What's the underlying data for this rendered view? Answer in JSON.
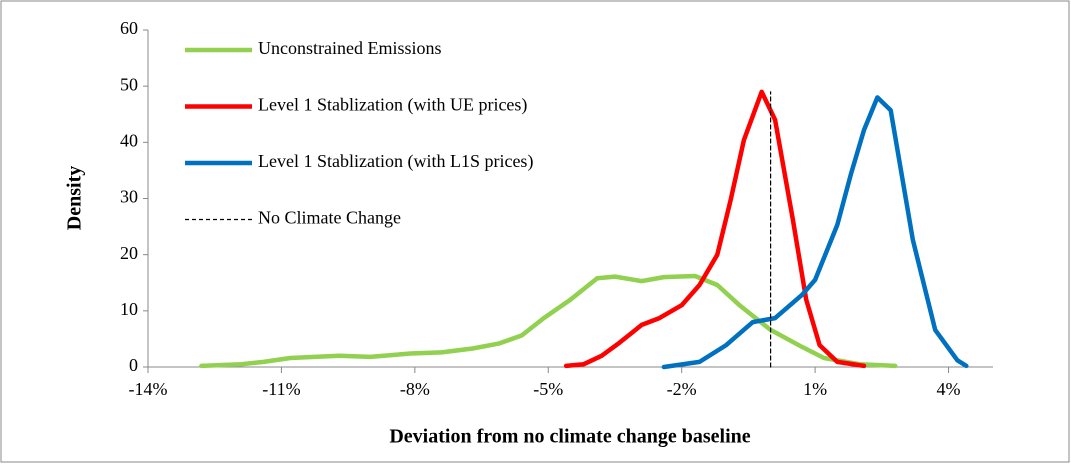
{
  "chart_data": {
    "type": "line",
    "x_label": "Deviation from no climate change baseline",
    "y_label": "Density",
    "xlim": [
      -14,
      5
    ],
    "xticks": [
      {
        "value": -14,
        "label": "-14%"
      },
      {
        "value": -11,
        "label": "-11%"
      },
      {
        "value": -8,
        "label": "-8%"
      },
      {
        "value": -5,
        "label": "-5%"
      },
      {
        "value": -2,
        "label": "-2%"
      },
      {
        "value": 1,
        "label": "1%"
      },
      {
        "value": 4,
        "label": "4%"
      }
    ],
    "ylim": [
      0,
      60
    ],
    "yticks": [
      0,
      10,
      20,
      30,
      40,
      50,
      60
    ],
    "grid": false,
    "legend": "top-left",
    "series": [
      {
        "name": "Unconstrained Emissions",
        "color": "#92d050",
        "linestyle": "solid",
        "x": [
          -12.8,
          -11.9,
          -11.4,
          -10.8,
          -9.7,
          -9.0,
          -8.1,
          -7.4,
          -6.7,
          -6.1,
          -5.6,
          -5.1,
          -4.5,
          -3.9,
          -3.5,
          -2.9,
          -2.4,
          -1.7,
          -1.2,
          -0.7,
          0,
          0.7,
          1.2,
          2.0,
          2.8
        ],
        "values": [
          0.2,
          0.5,
          0.9,
          1.6,
          2.0,
          1.8,
          2.4,
          2.6,
          3.3,
          4.2,
          5.6,
          8.7,
          12,
          15.8,
          16.1,
          15.3,
          16.0,
          16.2,
          14.6,
          11,
          6.6,
          3.6,
          1.6,
          0.5,
          0.2
        ]
      },
      {
        "name": "Level 1 Stablization (with UE prices)",
        "color": "#ff0000",
        "linestyle": "solid",
        "x": [
          -4.6,
          -4.2,
          -3.8,
          -3.4,
          -2.9,
          -2.5,
          -2.0,
          -1.6,
          -1.2,
          -0.9,
          -0.6,
          -0.2,
          0.1,
          0.5,
          0.8,
          1.1,
          1.5,
          2.1
        ],
        "values": [
          0.2,
          0.5,
          2,
          4.3,
          7.5,
          8.7,
          11,
          14.6,
          20,
          29.7,
          40.4,
          49,
          44,
          26.2,
          12,
          3.9,
          0.9,
          0.2
        ]
      },
      {
        "name": "Level 1 Stablization (with L1S prices)",
        "color": "#0070c0",
        "linestyle": "solid",
        "x": [
          -2.4,
          -1.6,
          -1.0,
          -0.4,
          0.1,
          0.7,
          1.0,
          1.5,
          1.8,
          2.1,
          2.4,
          2.7,
          3.2,
          3.7,
          4.2,
          4.4
        ],
        "values": [
          0,
          0.9,
          3.9,
          8,
          8.7,
          12.8,
          15.5,
          25.3,
          34.2,
          42.2,
          48,
          45.7,
          22.6,
          6.6,
          1.2,
          0.2
        ]
      },
      {
        "name": "No Climate Change",
        "color": "#000000",
        "linestyle": "dashed",
        "x": [
          0,
          0
        ],
        "values": [
          0,
          49
        ]
      }
    ]
  }
}
